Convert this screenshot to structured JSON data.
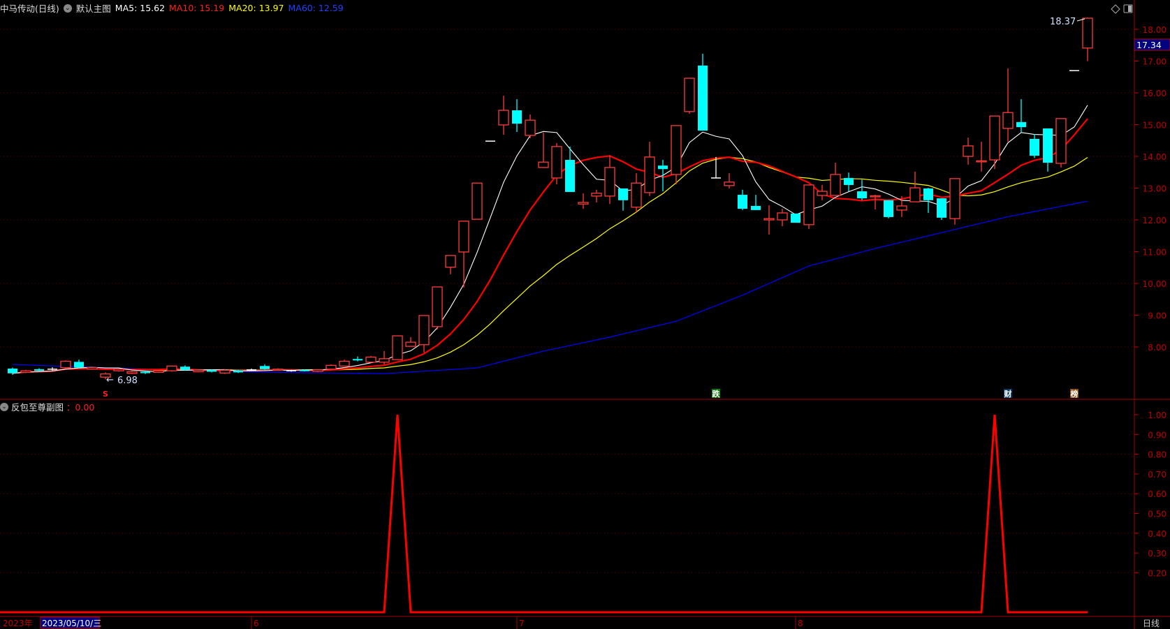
{
  "header": {
    "title": "中马传动(日线)",
    "main_chart_name": "默认主图",
    "ma5": "MA5: 15.62",
    "ma10": "MA10: 15.19",
    "ma20": "MA20: 13.97",
    "ma60": "MA60: 12.59"
  },
  "sub_header": {
    "name": "反包至尊副图",
    "value": "：0.00"
  },
  "colors": {
    "up": "#ff3b3b",
    "down": "#00ffff",
    "ma5": "#ffffff",
    "ma10": "#ff0000",
    "ma20": "#ffff00",
    "ma60": "#0000ff",
    "axis": "#c00000",
    "signal": "#ff0000"
  },
  "icons": [
    "dropdown-icon",
    "diamond-icon",
    "panel-toggle-icon"
  ],
  "price_axis": {
    "labels": [
      "8.00",
      "9.00",
      "10.00",
      "11.00",
      "12.00",
      "13.00",
      "14.00",
      "15.00",
      "16.00",
      "17.00",
      "18.00"
    ],
    "current_price": "17.34"
  },
  "sub_axis": {
    "labels": [
      "0.20",
      "0.30",
      "0.40",
      "0.50",
      "0.60",
      "0.70",
      "0.80",
      "0.90",
      "1.00"
    ]
  },
  "annotations": {
    "high_label": "18.37",
    "low_label": "6.98",
    "markers": [
      {
        "text": "S",
        "index": 7,
        "bg": "#000000",
        "fg": "#ff2020"
      },
      {
        "text": "跌",
        "index": 53,
        "bg": "#0a7a0a",
        "fg": "#ffffff"
      },
      {
        "text": "财",
        "index": 75,
        "bg": "#0a3a6a",
        "fg": "#ffffff"
      },
      {
        "text": "榜",
        "index": 80,
        "bg": "#8a4a10",
        "fg": "#ffffff"
      }
    ]
  },
  "date_bar": {
    "year": "2023年",
    "cursor_date": "2023/05/10/三",
    "months": [
      {
        "label": "6",
        "index": 18
      },
      {
        "label": "7",
        "index": 38
      },
      {
        "label": "8",
        "index": 59
      }
    ],
    "period": "日线"
  },
  "chart_data": [
    {
      "type": "candlestick",
      "fields": [
        "open",
        "close",
        "high",
        "low"
      ],
      "candles": [
        [
          7.32,
          7.17,
          7.35,
          7.12
        ],
        [
          7.2,
          7.25,
          7.28,
          7.18
        ],
        [
          7.3,
          7.25,
          7.33,
          7.22
        ],
        [
          7.3,
          7.3,
          7.36,
          7.26
        ],
        [
          7.35,
          7.55,
          7.58,
          7.33
        ],
        [
          7.53,
          7.35,
          7.6,
          7.33
        ],
        [
          7.3,
          7.35,
          7.38,
          7.28
        ],
        [
          7.05,
          7.15,
          7.2,
          6.98
        ],
        [
          7.25,
          7.3,
          7.33,
          7.22
        ],
        [
          7.17,
          7.22,
          7.25,
          7.15
        ],
        [
          7.22,
          7.18,
          7.26,
          7.15
        ],
        [
          7.2,
          7.25,
          7.28,
          7.18
        ],
        [
          7.25,
          7.4,
          7.42,
          7.22
        ],
        [
          7.38,
          7.28,
          7.42,
          7.25
        ],
        [
          7.22,
          7.27,
          7.3,
          7.2
        ],
        [
          7.27,
          7.22,
          7.3,
          7.2
        ],
        [
          7.18,
          7.27,
          7.3,
          7.15
        ],
        [
          7.26,
          7.2,
          7.28,
          7.18
        ],
        [
          7.28,
          7.28,
          7.32,
          7.25
        ],
        [
          7.4,
          7.3,
          7.45,
          7.28
        ],
        [
          7.28,
          7.3,
          7.33,
          7.26
        ],
        [
          7.25,
          7.25,
          7.28,
          7.22
        ],
        [
          7.28,
          7.25,
          7.3,
          7.23
        ],
        [
          7.23,
          7.28,
          7.3,
          7.21
        ],
        [
          7.3,
          7.42,
          7.45,
          7.28
        ],
        [
          7.4,
          7.55,
          7.6,
          7.38
        ],
        [
          7.62,
          7.58,
          7.7,
          7.55
        ],
        [
          7.52,
          7.68,
          7.72,
          7.5
        ],
        [
          7.52,
          7.63,
          7.87,
          7.45
        ],
        [
          7.6,
          8.35,
          8.35,
          7.6
        ],
        [
          8.02,
          8.15,
          8.31,
          8.02
        ],
        [
          8.07,
          8.99,
          8.99,
          7.82
        ],
        [
          8.64,
          9.89,
          9.89,
          8.55
        ],
        [
          10.51,
          10.88,
          10.88,
          10.29
        ],
        [
          10.99,
          11.96,
          11.96,
          9.87
        ],
        [
          12.02,
          13.16,
          13.16,
          12.02
        ],
        [
          14.48,
          14.48,
          14.48,
          14.48
        ],
        [
          14.99,
          15.45,
          15.91,
          14.68
        ],
        [
          15.45,
          15.03,
          15.8,
          14.77
        ],
        [
          14.66,
          15.14,
          15.32,
          14.57
        ],
        [
          13.65,
          13.82,
          14.75,
          13.65
        ],
        [
          13.32,
          14.31,
          14.42,
          13.12
        ],
        [
          13.89,
          12.88,
          14.31,
          12.88
        ],
        [
          12.5,
          12.55,
          12.84,
          12.35
        ],
        [
          12.75,
          12.84,
          12.95,
          12.55
        ],
        [
          12.75,
          13.65,
          14.04,
          12.5
        ],
        [
          12.99,
          12.62,
          12.99,
          12.29
        ],
        [
          12.4,
          13.16,
          13.47,
          12.22
        ],
        [
          12.86,
          13.98,
          14.46,
          12.75
        ],
        [
          13.71,
          13.6,
          13.89,
          12.9
        ],
        [
          13.43,
          14.97,
          14.97,
          13.12
        ],
        [
          15.41,
          16.46,
          16.46,
          15.34
        ],
        [
          16.86,
          14.81,
          17.23,
          14.81
        ],
        [
          13.32,
          13.32,
          13.98,
          13.32
        ],
        [
          13.08,
          13.19,
          13.47,
          12.99
        ],
        [
          12.79,
          12.35,
          12.95,
          12.31
        ],
        [
          12.44,
          12.31,
          12.79,
          12.31
        ],
        [
          12.0,
          12.04,
          12.46,
          11.54
        ],
        [
          12.0,
          12.22,
          12.35,
          11.8
        ],
        [
          12.2,
          11.91,
          12.2,
          11.91
        ],
        [
          11.85,
          13.1,
          13.1,
          11.71
        ],
        [
          12.77,
          12.9,
          13.1,
          12.62
        ],
        [
          12.77,
          13.43,
          13.8,
          12.77
        ],
        [
          13.32,
          13.1,
          13.49,
          12.9
        ],
        [
          12.9,
          12.68,
          13.27,
          12.62
        ],
        [
          12.75,
          12.76,
          12.79,
          12.33
        ],
        [
          12.62,
          12.09,
          12.62,
          12.05
        ],
        [
          12.31,
          12.44,
          12.75,
          12.09
        ],
        [
          12.57,
          13.01,
          13.52,
          12.57
        ],
        [
          12.99,
          12.62,
          13.01,
          12.22
        ],
        [
          12.68,
          12.07,
          12.68,
          12.0
        ],
        [
          12.04,
          13.3,
          13.3,
          11.85
        ],
        [
          14.0,
          14.33,
          14.59,
          13.74
        ],
        [
          13.85,
          13.86,
          14.46,
          13.52
        ],
        [
          13.89,
          15.27,
          15.27,
          13.6
        ],
        [
          14.88,
          15.38,
          16.77,
          14.46
        ],
        [
          15.08,
          14.92,
          15.8,
          14.75
        ],
        [
          14.55,
          14.02,
          14.7,
          13.95
        ],
        [
          14.88,
          13.8,
          14.88,
          13.52
        ],
        [
          13.78,
          15.19,
          15.19,
          13.65
        ],
        [
          16.7,
          16.7,
          16.7,
          16.7
        ],
        [
          17.41,
          18.35,
          18.37,
          17.0
        ]
      ],
      "ma60_points": [
        [
          0,
          7.45
        ],
        [
          10,
          7.3
        ],
        [
          20,
          7.2
        ],
        [
          28,
          7.16
        ],
        [
          35,
          7.34
        ],
        [
          40,
          7.87
        ],
        [
          45,
          8.31
        ],
        [
          50,
          8.81
        ],
        [
          55,
          9.63
        ],
        [
          60,
          10.55
        ],
        [
          65,
          11.1
        ],
        [
          70,
          11.6
        ],
        [
          75,
          12.1
        ],
        [
          81,
          12.59
        ]
      ],
      "ylim": [
        6.5,
        19.0
      ]
    },
    {
      "type": "line",
      "name": "反包至尊副图",
      "signal_indices": [
        29,
        74
      ],
      "baseline": 0,
      "peak": 1.0,
      "ylim": [
        0,
        1.0
      ]
    }
  ]
}
